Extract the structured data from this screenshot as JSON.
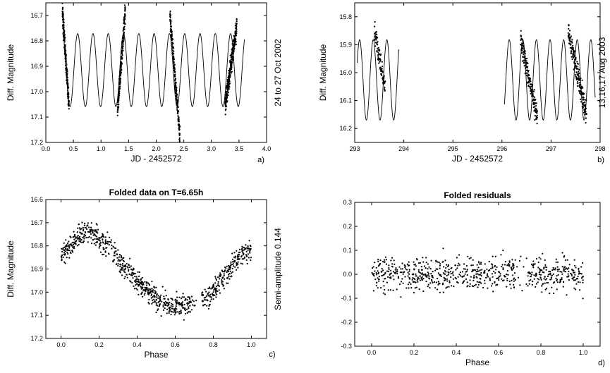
{
  "chart_data": [
    {
      "id": "a",
      "type": "scatter",
      "panel_label": "a)",
      "title": "",
      "xlabel": "JD - 2452572",
      "ylabel": "Diff. Magnitude",
      "side_label": "24 to 27 Oct 2002",
      "xlim": [
        0.0,
        4.0
      ],
      "ylim": [
        16.65,
        17.2
      ],
      "y_inverted": true,
      "xticks": [
        0.0,
        0.5,
        1.0,
        1.5,
        2.0,
        2.5,
        3.0,
        3.5,
        4.0
      ],
      "xtick_labels": [
        "0.0",
        "0.5",
        "1.0",
        "1.5",
        "2.0",
        "2.5",
        "3.0",
        "3.5",
        "4.0"
      ],
      "yticks": [
        16.7,
        16.8,
        16.9,
        17.0,
        17.1,
        17.2
      ],
      "ytick_labels": [
        "16.7",
        "16.8",
        "16.9",
        "17.0",
        "17.1",
        "17.2"
      ],
      "model": {
        "period_days": 0.2771,
        "mean": 16.915,
        "amplitude": 0.144,
        "x_range": [
          0.3,
          3.6
        ],
        "phase0": 0.3
      },
      "observations": [
        {
          "x_range": [
            0.3,
            0.42
          ],
          "y_start": 16.68,
          "y_end": 17.06,
          "count": 220
        },
        {
          "x_range": [
            1.3,
            1.44
          ],
          "y_start": 17.08,
          "y_end": 16.68,
          "count": 200
        },
        {
          "x_range": [
            2.25,
            2.43
          ],
          "y_start": 16.7,
          "y_end": 17.18,
          "count": 210
        },
        {
          "x_range": [
            3.25,
            3.46
          ],
          "y_start": 17.05,
          "y_end": 16.74,
          "count": 300
        }
      ]
    },
    {
      "id": "b",
      "type": "scatter",
      "panel_label": "b)",
      "title": "",
      "xlabel": "JD - 2452572",
      "ylabel": "Diff. Magnitude",
      "side_label": "13,16,17 Aug 2003",
      "xlim": [
        293.0,
        298.0
      ],
      "ylim": [
        15.75,
        16.25
      ],
      "y_inverted": true,
      "xticks": [
        293,
        294,
        295,
        296,
        297,
        298
      ],
      "xtick_labels": [
        "293",
        "294",
        "295",
        "296",
        "297",
        "298"
      ],
      "yticks": [
        15.8,
        15.9,
        16.0,
        16.1,
        16.2
      ],
      "ytick_labels": [
        "15.8",
        "15.9",
        "16.0",
        "16.1",
        "16.2"
      ],
      "model": {
        "period_days": 0.2771,
        "mean": 16.026,
        "amplitude": 0.144,
        "x_ranges": [
          [
            293.05,
            293.9
          ],
          [
            296.05,
            297.9
          ]
        ],
        "phase0": 293.1
      },
      "observations": [
        {
          "x_range": [
            293.4,
            293.62
          ],
          "y_start": 15.85,
          "y_end": 16.05,
          "count": 90
        },
        {
          "x_range": [
            296.38,
            296.72
          ],
          "y_start": 15.88,
          "y_end": 16.16,
          "count": 170
        },
        {
          "x_range": [
            297.35,
            297.72
          ],
          "y_start": 15.85,
          "y_end": 16.15,
          "count": 200
        }
      ]
    },
    {
      "id": "c",
      "type": "scatter",
      "panel_label": "c)",
      "title": "Folded data on T=6.65h",
      "xlabel": "Phase",
      "ylabel": "Diff. Magnitude",
      "side_label": "Semi-amplitude 0.144",
      "xlim": [
        -0.08,
        1.08
      ],
      "ylim": [
        16.6,
        17.2
      ],
      "y_inverted": true,
      "xticks": [
        0.0,
        0.2,
        0.4,
        0.6,
        0.8,
        1.0
      ],
      "xtick_labels": [
        "0.0",
        "0.2",
        "0.4",
        "0.6",
        "0.8",
        "1.0"
      ],
      "yticks": [
        16.6,
        16.7,
        16.8,
        16.9,
        17.0,
        17.1,
        17.2
      ],
      "ytick_labels": [
        "16.6",
        "16.7",
        "16.8",
        "16.9",
        "17.0",
        "17.1",
        "17.2"
      ],
      "profile": {
        "phase": [
          0.0,
          0.05,
          0.1,
          0.15,
          0.2,
          0.25,
          0.3,
          0.35,
          0.4,
          0.45,
          0.5,
          0.55,
          0.6,
          0.65,
          0.7,
          0.75,
          0.8,
          0.85,
          0.9,
          0.95,
          1.0
        ],
        "magnitude": [
          16.84,
          16.8,
          16.75,
          16.74,
          16.77,
          16.8,
          16.86,
          16.91,
          16.95,
          16.99,
          17.02,
          17.05,
          17.06,
          17.06,
          17.04,
          17.02,
          17.0,
          16.93,
          16.88,
          16.84,
          16.83
        ]
      },
      "scatter": 0.04,
      "count": 900
    },
    {
      "id": "d",
      "type": "scatter",
      "panel_label": "d)",
      "title": "Folded residuals",
      "xlabel": "Phase",
      "ylabel": "",
      "side_label": "",
      "xlim": [
        -0.08,
        1.08
      ],
      "ylim": [
        -0.3,
        0.3
      ],
      "y_inverted": false,
      "xticks": [
        0.0,
        0.2,
        0.4,
        0.6,
        0.8,
        1.0
      ],
      "xtick_labels": [
        "0.0",
        "0.2",
        "0.4",
        "0.6",
        "0.8",
        "1.0"
      ],
      "yticks": [
        -0.3,
        -0.2,
        -0.1,
        0.0,
        0.1,
        0.2,
        0.3
      ],
      "ytick_labels": [
        "-0.3",
        "-0.2",
        "-0.1",
        "0.0",
        "0.1",
        "0.2",
        "0.3"
      ],
      "scatter": 0.045,
      "count": 760
    }
  ]
}
